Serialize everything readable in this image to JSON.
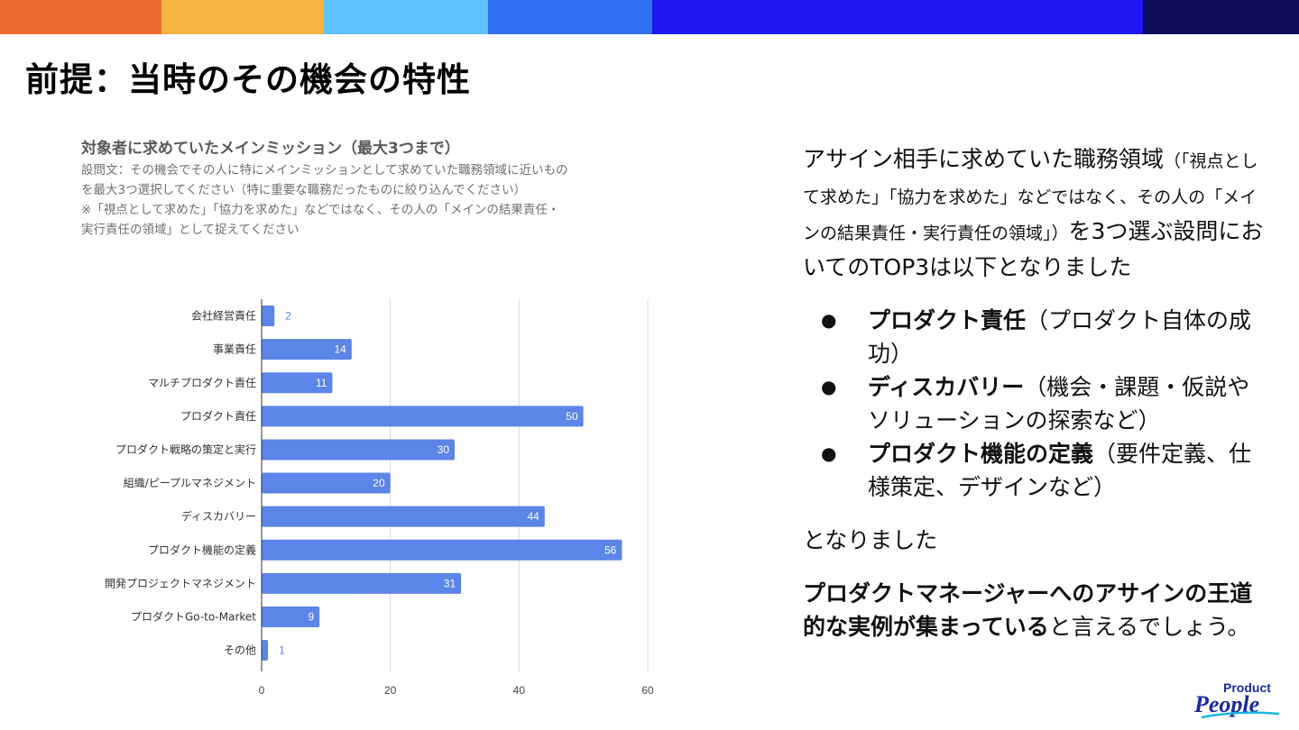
{
  "colors": {
    "topbar": [
      "#ef6a32",
      "#f6b443",
      "#5bc2fb",
      "#3172f3",
      "#1f17f2",
      "#0f0c5c"
    ],
    "bar": "#5b85e6",
    "axis_text": "#444444"
  },
  "page_title": "前提：当時のその機会の特性",
  "chart_block": {
    "heading": "対象者に求めていたメインミッション（最大3つまで）",
    "description_lines": [
      "設問文：その機会でその人に特にメインミッションとして求めていた職務領域に近いもの",
      "を最大3つ選択してください（特に重要な職務だったものに絞り込んでください）",
      "※「視点として求めた」「協力を求めた」などではなく、その人の「メインの結果責任・",
      "実行責任の領域」として捉えてください"
    ]
  },
  "chart_data": {
    "type": "bar",
    "orientation": "horizontal",
    "categories": [
      "会社経営責任",
      "事業責任",
      "マルチプロダクト責任",
      "プロダクト責任",
      "プロダクト戦略の策定と実行",
      "組織/ピープルマネジメント",
      "ディスカバリー",
      "プロダクト機能の定義",
      "開発プロジェクトマネジメント",
      "プロダクトGo-to-Market",
      "その他"
    ],
    "values": [
      2,
      14,
      11,
      50,
      30,
      20,
      44,
      56,
      31,
      9,
      1
    ],
    "xlim": [
      0,
      60
    ],
    "xticks": [
      0,
      20,
      40,
      60
    ],
    "grid": true,
    "title": "",
    "xlabel": "",
    "ylabel": ""
  },
  "side": {
    "intro_main": "アサイン相手に求めていた職務領域",
    "intro_note": "（「視点として求めた」「協力を求めた」などではなく、その人の「メインの結果責任・実行責任の領域」）",
    "intro_tail": "を3つ選ぶ設問においてのTOP3は以下となりました",
    "bullet_symbol": "●",
    "bullets": [
      {
        "bold": "プロダクト責任",
        "rest": "（プロダクト自体の成功）"
      },
      {
        "bold": "ディスカバリー",
        "rest": "（機会・課題・仮説やソリューションの探索など）"
      },
      {
        "bold": "プロダクト機能の定義",
        "rest": "（要件定義、仕様策定、デザインなど）"
      }
    ],
    "after_list": "となりました",
    "closing_bold": "プロダクトマネージャーへのアサインの王道的な実例が集まっている",
    "closing_rest": "と言えるでしょう。"
  },
  "logo": {
    "line1": "Product",
    "line2": "People"
  }
}
